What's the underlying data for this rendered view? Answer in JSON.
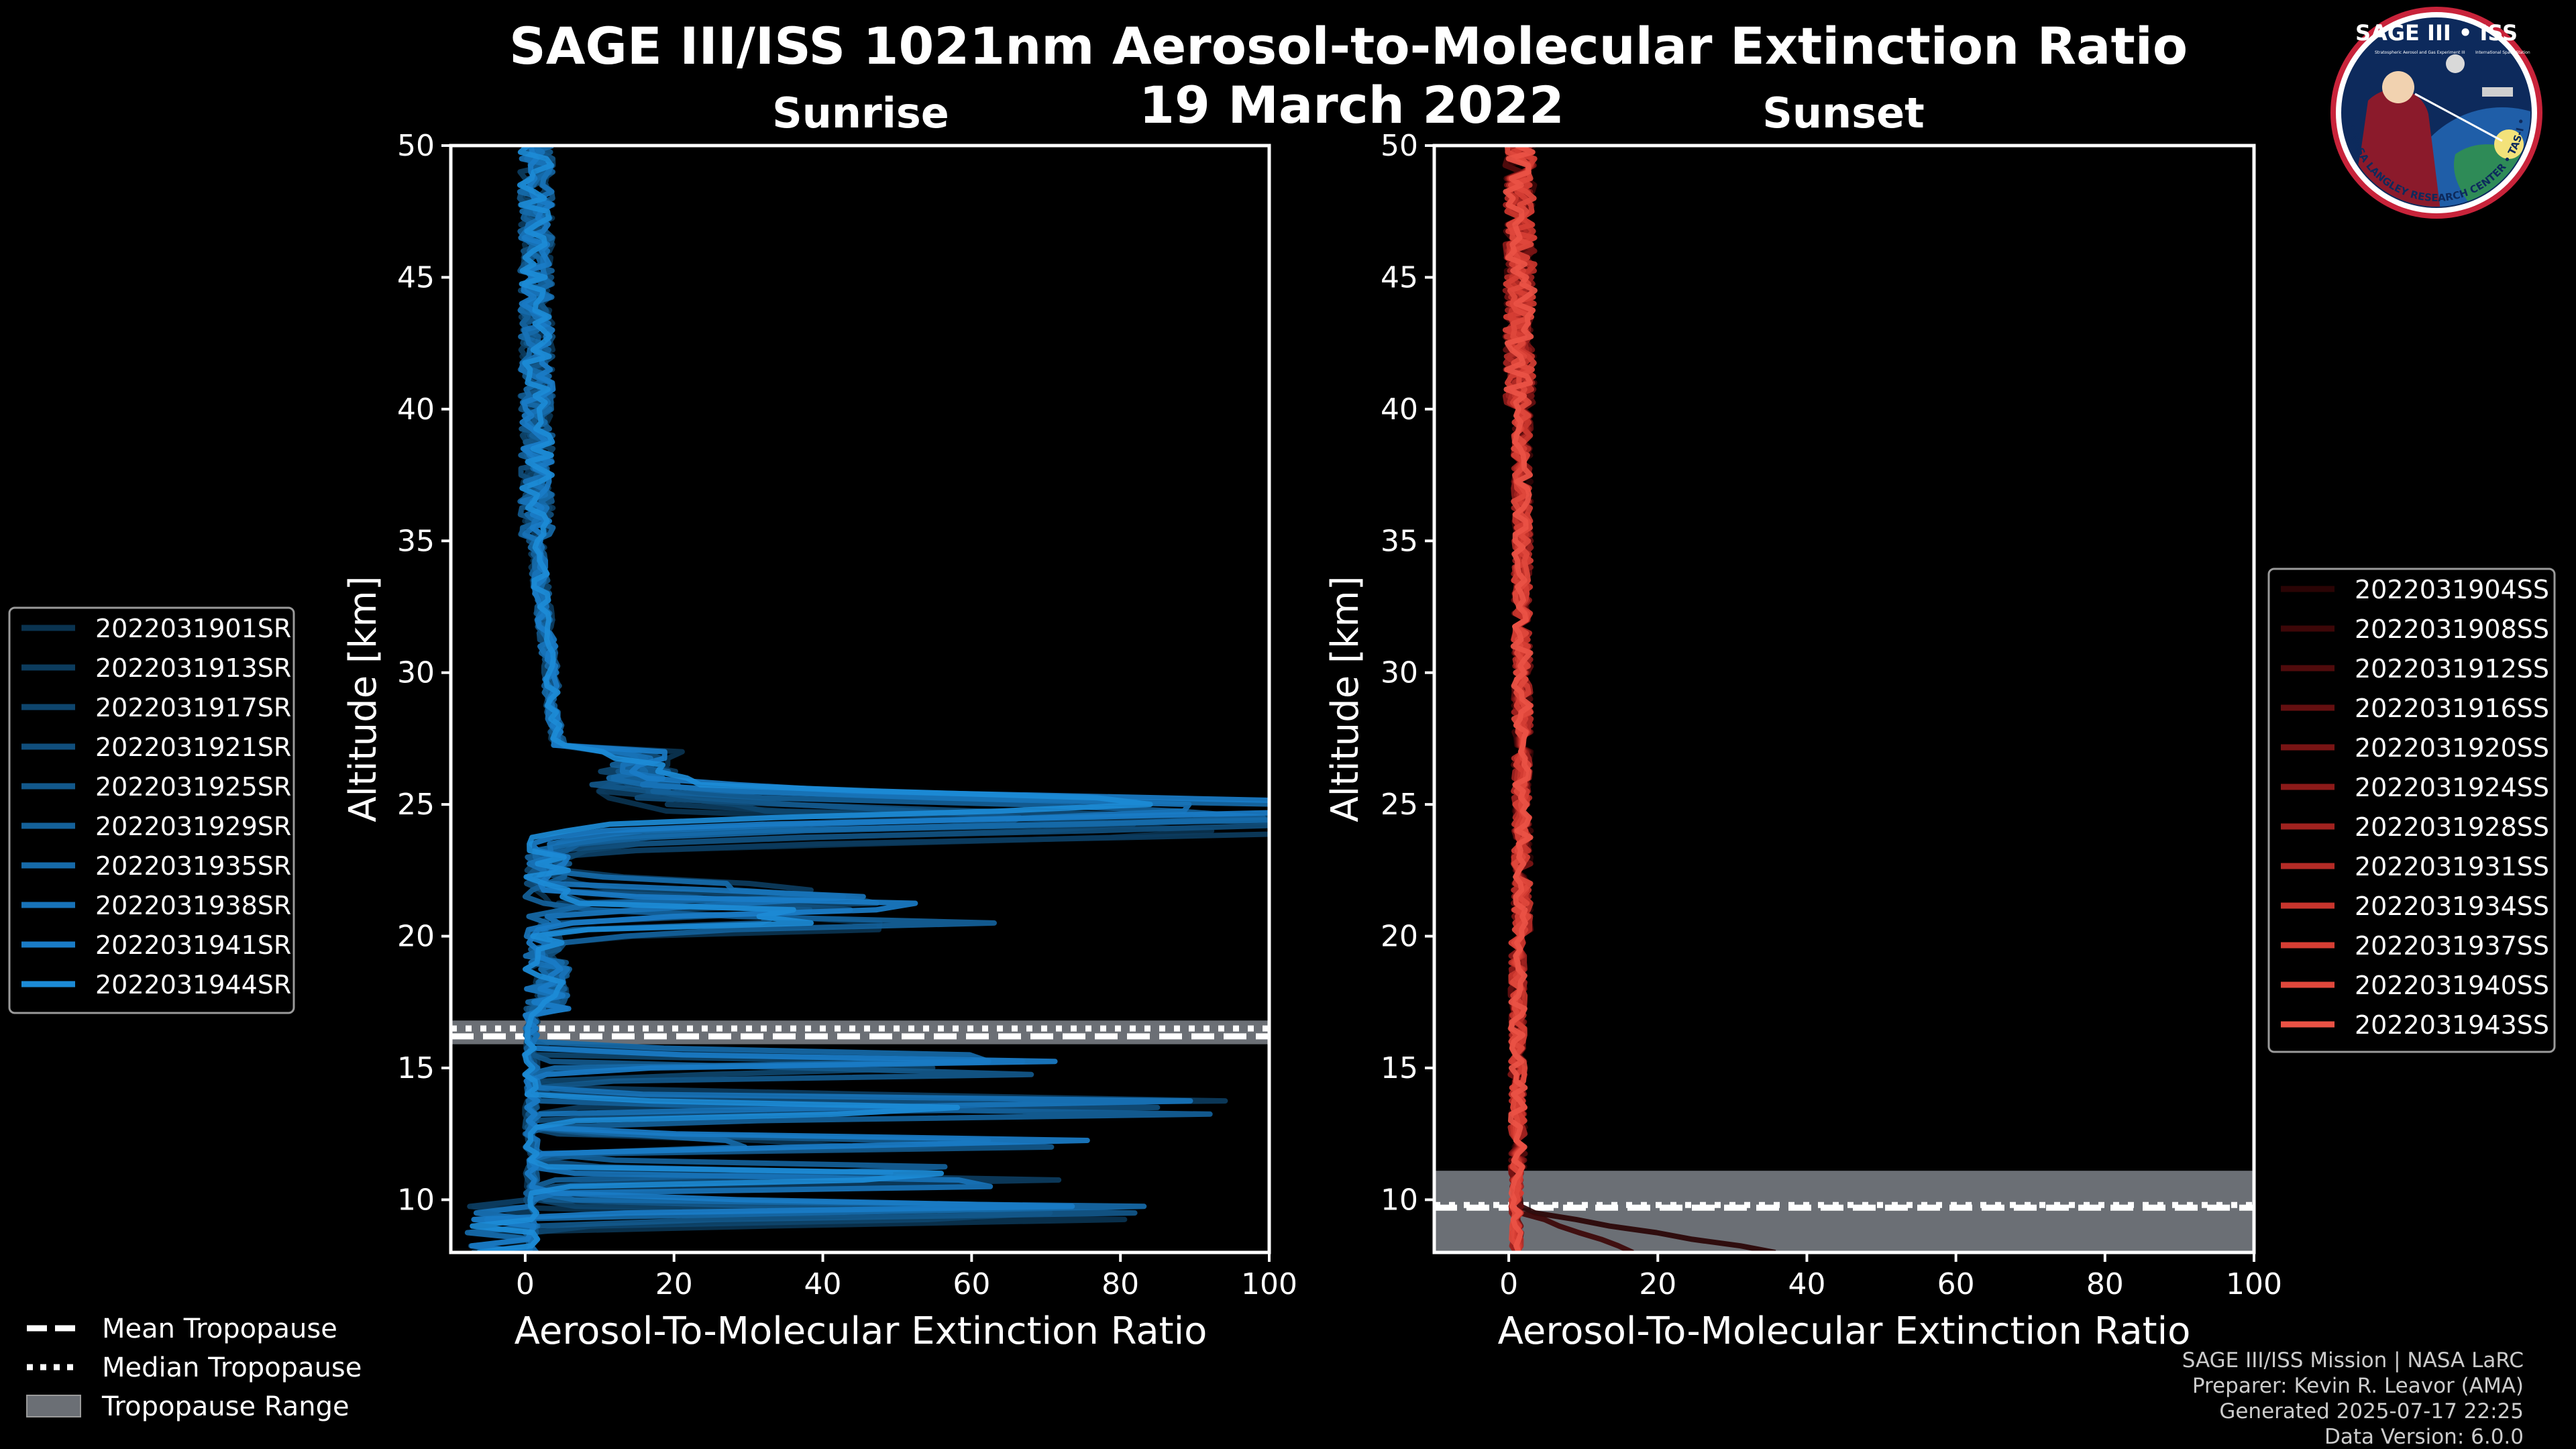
{
  "chart_data": {
    "type": "line",
    "title": "SAGE III/ISS 1021nm Aerosol-to-Molecular Extinction Ratio",
    "subtitle": "19 March 2022",
    "panels": [
      {
        "id": "sunrise",
        "title": "Sunrise",
        "xlabel": "Aerosol-To-Molecular Extinction Ratio",
        "ylabel": "Altitude [km]",
        "xlim": [
          -10,
          100
        ],
        "ylim": [
          8,
          50
        ],
        "xticks": [
          0,
          20,
          40,
          60,
          80,
          100
        ],
        "yticks": [
          10,
          15,
          20,
          25,
          30,
          35,
          40,
          45,
          50
        ],
        "legend_position": "left",
        "tropopause": {
          "mean": 16.2,
          "median": 16.5,
          "range": [
            15.9,
            16.8
          ]
        },
        "series": [
          {
            "name": "2022031901SR",
            "color": "#0a3350"
          },
          {
            "name": "2022031913SR",
            "color": "#0c3c5e"
          },
          {
            "name": "2022031917SR",
            "color": "#0e456d"
          },
          {
            "name": "2022031921SR",
            "color": "#104e7c"
          },
          {
            "name": "2022031925SR",
            "color": "#12588b"
          },
          {
            "name": "2022031929SR",
            "color": "#14619a"
          },
          {
            "name": "2022031935SR",
            "color": "#166aa9"
          },
          {
            "name": "2022031938SR",
            "color": "#1873b8"
          },
          {
            "name": "2022031941SR",
            "color": "#1a7cc7"
          },
          {
            "name": "2022031944SR",
            "color": "#1c8bd6"
          }
        ]
      },
      {
        "id": "sunset",
        "title": "Sunset",
        "xlabel": "Aerosol-To-Molecular Extinction Ratio",
        "ylabel": "Altitude [km]",
        "xlim": [
          -10,
          100
        ],
        "ylim": [
          8,
          50
        ],
        "xticks": [
          0,
          20,
          40,
          60,
          80,
          100
        ],
        "yticks": [
          10,
          15,
          20,
          25,
          30,
          35,
          40,
          45,
          50
        ],
        "legend_position": "right",
        "tropopause": {
          "mean": 9.7,
          "median": 9.8,
          "range": [
            8.0,
            11.1
          ]
        },
        "series": [
          {
            "name": "2022031904SS",
            "color": "#2a0405"
          },
          {
            "name": "2022031908SS",
            "color": "#3d0708"
          },
          {
            "name": "2022031912SS",
            "color": "#500b0c"
          },
          {
            "name": "2022031916SS",
            "color": "#640f10"
          },
          {
            "name": "2022031920SS",
            "color": "#781414"
          },
          {
            "name": "2022031924SS",
            "color": "#8c1a19"
          },
          {
            "name": "2022031928SS",
            "color": "#a0221f"
          },
          {
            "name": "2022031931SS",
            "color": "#b42b26"
          },
          {
            "name": "2022031934SS",
            "color": "#c8352d"
          },
          {
            "name": "2022031937SS",
            "color": "#d63e34"
          },
          {
            "name": "2022031940SS",
            "color": "#e0483c"
          },
          {
            "name": "2022031943SS",
            "color": "#ea5245"
          }
        ]
      }
    ],
    "tropopause_legend": [
      "Mean Tropopause",
      "Median Tropopause",
      "Tropopause Range"
    ]
  },
  "footer": {
    "line1": "SAGE III/ISS Mission | NASA LaRC",
    "line2": "Preparer: Kevin R. Leavor (AMA)",
    "line3": "Generated 2025-07-17 22:25",
    "line4": "Data Version: 6.0.0"
  },
  "logo": {
    "top_text": "SAGE III • ISS",
    "small_left": "Stratospheric Aerosol and Gas Experiment III",
    "small_right": "International Space Station",
    "ring_text": "BALL • NASA LANGLEY RESEARCH CENTER • TAS-I • ESA"
  },
  "colors": {
    "background": "#000000",
    "axes": "#ffffff",
    "tropopause_range": "#6b6f75",
    "tropopause_line": "#ffffff",
    "legend_bg": "#000000",
    "legend_edge": "#9a9a9a"
  }
}
